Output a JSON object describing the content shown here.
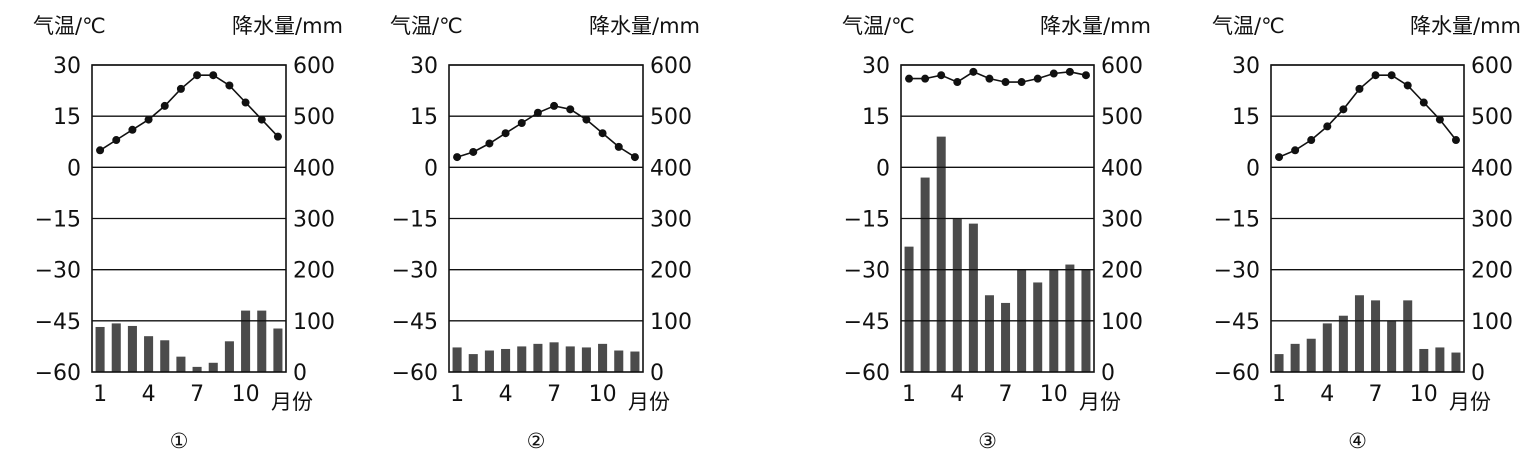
{
  "axis_labels": {
    "temp": "气温/℃",
    "precip": "降水量/mm",
    "month": "月份"
  },
  "chart_data": [
    {
      "type": "bar+line",
      "label": "①",
      "months": [
        1,
        2,
        3,
        4,
        5,
        6,
        7,
        8,
        9,
        10,
        11,
        12
      ],
      "x_tick_labels": [
        "1",
        "4",
        "7",
        "10"
      ],
      "temp_ticks": [
        "30",
        "15",
        "0",
        "−15",
        "−30",
        "−45",
        "−60"
      ],
      "precip_ticks": [
        "600",
        "500",
        "400",
        "300",
        "200",
        "100",
        "0"
      ],
      "temp_range": [
        -60,
        30
      ],
      "precip_range": [
        0,
        600
      ],
      "temperature": [
        5,
        8,
        11,
        14,
        18,
        23,
        27,
        27,
        24,
        19,
        14,
        9
      ],
      "precipitation": [
        88,
        95,
        90,
        70,
        62,
        30,
        10,
        18,
        60,
        120,
        120,
        85
      ]
    },
    {
      "type": "bar+line",
      "label": "②",
      "months": [
        1,
        2,
        3,
        4,
        5,
        6,
        7,
        8,
        9,
        10,
        11,
        12
      ],
      "x_tick_labels": [
        "1",
        "4",
        "7",
        "10"
      ],
      "temp_ticks": [
        "30",
        "15",
        "0",
        "−15",
        "−30",
        "−45",
        "−60"
      ],
      "precip_ticks": [
        "600",
        "500",
        "400",
        "300",
        "200",
        "100",
        "0"
      ],
      "temp_range": [
        -60,
        30
      ],
      "precip_range": [
        0,
        600
      ],
      "temperature": [
        3,
        4.5,
        7,
        10,
        13,
        16,
        18,
        17,
        14,
        10,
        6,
        3
      ],
      "precipitation": [
        48,
        35,
        42,
        45,
        50,
        55,
        58,
        50,
        48,
        55,
        42,
        40
      ]
    },
    {
      "type": "bar+line",
      "label": "③",
      "months": [
        1,
        2,
        3,
        4,
        5,
        6,
        7,
        8,
        9,
        10,
        11,
        12
      ],
      "x_tick_labels": [
        "1",
        "4",
        "7",
        "10"
      ],
      "temp_ticks": [
        "30",
        "15",
        "0",
        "−15",
        "−30",
        "−45",
        "−60"
      ],
      "precip_ticks": [
        "600",
        "500",
        "400",
        "300",
        "200",
        "100",
        "0"
      ],
      "temp_range": [
        -60,
        30
      ],
      "precip_range": [
        0,
        600
      ],
      "temperature": [
        26,
        26,
        27,
        25,
        28,
        26,
        25,
        25,
        26,
        27.5,
        28,
        27
      ],
      "precipitation": [
        245,
        380,
        460,
        300,
        290,
        150,
        135,
        200,
        175,
        200,
        210,
        200
      ]
    },
    {
      "type": "bar+line",
      "label": "④",
      "months": [
        1,
        2,
        3,
        4,
        5,
        6,
        7,
        8,
        9,
        10,
        11,
        12
      ],
      "x_tick_labels": [
        "1",
        "4",
        "7",
        "10"
      ],
      "temp_ticks": [
        "30",
        "15",
        "0",
        "−15",
        "−30",
        "−45",
        "−60"
      ],
      "precip_ticks": [
        "600",
        "500",
        "400",
        "300",
        "200",
        "100",
        "0"
      ],
      "temp_range": [
        -60,
        30
      ],
      "precip_range": [
        0,
        600
      ],
      "temperature": [
        3,
        5,
        8,
        12,
        17,
        23,
        27,
        27,
        24,
        19,
        14,
        8
      ],
      "precipitation": [
        35,
        55,
        65,
        95,
        110,
        150,
        140,
        100,
        140,
        45,
        48,
        38
      ]
    }
  ]
}
